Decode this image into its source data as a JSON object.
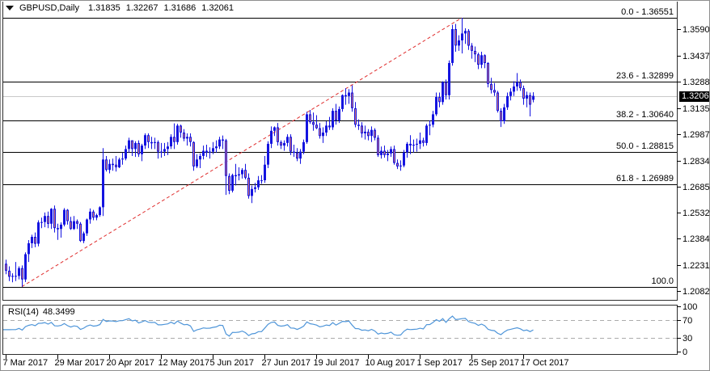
{
  "title": {
    "symbol": "GBPUSD,Daily",
    "open": "1.31835",
    "high": "1.32267",
    "low": "1.31686",
    "close": "1.32061"
  },
  "colors": {
    "bull": "#1414e0",
    "bear_fill": "#dd7a76",
    "wick": "#1414e0",
    "trendline": "#e02e2e",
    "fib_line": "#000000",
    "current_price_line": "#c9c9c9",
    "rsi_line": "#4e95d9",
    "rsi_dash": "#ababab",
    "frame": "#2e2e2e",
    "price_box_bg": "#000000",
    "price_box_text": "#ffffff"
  },
  "chart_data": {
    "type": "candlestick",
    "symbol": "GBPUSD",
    "timeframe": "Daily",
    "ylim": [
      1.2032,
      1.3753
    ],
    "grid": false,
    "current_price": 1.32061,
    "price_box": "1.32061",
    "price_ticks": [
      "1.35900",
      "1.34370",
      "1.32885",
      "1.31355",
      "1.29870",
      "1.28340",
      "1.26855",
      "1.25325",
      "1.23840",
      "1.22310",
      "1.20825"
    ],
    "x_labels": [
      {
        "text": "7 Mar 2017",
        "bar": 0
      },
      {
        "text": "29 Mar 2017",
        "bar": 16
      },
      {
        "text": "20 Apr 2017",
        "bar": 32
      },
      {
        "text": "12 May 2017",
        "bar": 48
      },
      {
        "text": "5 Jun 2017",
        "bar": 64
      },
      {
        "text": "27 Jun 2017",
        "bar": 80
      },
      {
        "text": "19 Jul 2017",
        "bar": 96
      },
      {
        "text": "10 Aug 2017",
        "bar": 112
      },
      {
        "text": "1 Sep 2017",
        "bar": 128
      },
      {
        "text": "25 Sep 2017",
        "bar": 144
      },
      {
        "text": "17 Oct 2017",
        "bar": 160
      }
    ],
    "fibonacci_levels": [
      {
        "label": "0.0 - 1.36551",
        "price": 1.36551
      },
      {
        "label": "23.6 - 1.32899",
        "price": 1.32899
      },
      {
        "label": "38.2 - 1.30640",
        "price": 1.3064
      },
      {
        "label": "50.0 - 1.28815",
        "price": 1.28815
      },
      {
        "label": "61.8 - 1.26989",
        "price": 1.26989
      },
      {
        "label": "100.0",
        "price": 1.21076
      }
    ],
    "trendline": {
      "from_bar": 5,
      "from_price": 1.2108,
      "to_bar": 141,
      "to_price": 1.36551,
      "style": "dashed"
    },
    "rsi": {
      "label": "RSI(14)",
      "value": "48.3499",
      "period": 14,
      "scale_ticks": [
        100,
        70,
        30,
        0
      ],
      "overbought": 70,
      "oversold": 30
    },
    "candles": [
      [
        1.224,
        1.2263,
        1.218,
        1.22
      ],
      [
        1.22,
        1.2225,
        1.214,
        1.2165
      ],
      [
        1.2165,
        1.2185,
        1.2133,
        1.217
      ],
      [
        1.217,
        1.225,
        1.214,
        1.217
      ],
      [
        1.217,
        1.2225,
        1.215,
        1.2215
      ],
      [
        1.2215,
        1.223,
        1.2108,
        1.215
      ],
      [
        1.215,
        1.2305,
        1.2135,
        1.2295
      ],
      [
        1.2295,
        1.2376,
        1.225,
        1.2358
      ],
      [
        1.2358,
        1.2407,
        1.233,
        1.2395
      ],
      [
        1.2395,
        1.242,
        1.2335,
        1.2355
      ],
      [
        1.2355,
        1.249,
        1.234,
        1.2478
      ],
      [
        1.2478,
        1.2505,
        1.2445,
        1.248
      ],
      [
        1.248,
        1.2535,
        1.245,
        1.2515
      ],
      [
        1.2515,
        1.254,
        1.2445,
        1.247
      ],
      [
        1.247,
        1.256,
        1.244,
        1.2556
      ],
      [
        1.2556,
        1.2575,
        1.242,
        1.2445
      ],
      [
        1.2445,
        1.247,
        1.2377,
        1.244
      ],
      [
        1.244,
        1.2478,
        1.239,
        1.2465
      ],
      [
        1.2465,
        1.256,
        1.2455,
        1.255
      ],
      [
        1.255,
        1.2555,
        1.2465,
        1.2485
      ],
      [
        1.2485,
        1.251,
        1.2435,
        1.244
      ],
      [
        1.244,
        1.2515,
        1.2435,
        1.2485
      ],
      [
        1.2485,
        1.2495,
        1.244,
        1.247
      ],
      [
        1.247,
        1.248,
        1.2365,
        1.2371
      ],
      [
        1.2371,
        1.2425,
        1.2358,
        1.2415
      ],
      [
        1.2415,
        1.25,
        1.24,
        1.2495
      ],
      [
        1.2495,
        1.2558,
        1.247,
        1.254
      ],
      [
        1.254,
        1.255,
        1.249,
        1.2505
      ],
      [
        1.2505,
        1.2528,
        1.249,
        1.252
      ],
      [
        1.252,
        1.257,
        1.251,
        1.2565
      ],
      [
        1.2565,
        1.2905,
        1.2515,
        1.284
      ],
      [
        1.284,
        1.286,
        1.277,
        1.278
      ],
      [
        1.278,
        1.284,
        1.276,
        1.2815
      ],
      [
        1.2815,
        1.2845,
        1.2775,
        1.281
      ],
      [
        1.281,
        1.286,
        1.277,
        1.2795
      ],
      [
        1.2795,
        1.285,
        1.279,
        1.284
      ],
      [
        1.284,
        1.288,
        1.281,
        1.2845
      ],
      [
        1.2845,
        1.292,
        1.2835,
        1.29
      ],
      [
        1.29,
        1.2965,
        1.288,
        1.295
      ],
      [
        1.295,
        1.295,
        1.286,
        1.29
      ],
      [
        1.29,
        1.2945,
        1.2855,
        1.2935
      ],
      [
        1.2935,
        1.295,
        1.2855,
        1.287
      ],
      [
        1.287,
        1.293,
        1.283,
        1.292
      ],
      [
        1.292,
        1.299,
        1.29,
        1.298
      ],
      [
        1.298,
        1.299,
        1.2905,
        1.294
      ],
      [
        1.294,
        1.297,
        1.29,
        1.2935
      ],
      [
        1.2935,
        1.2965,
        1.29,
        1.294
      ],
      [
        1.294,
        1.295,
        1.2845,
        1.2885
      ],
      [
        1.2885,
        1.2935,
        1.285,
        1.2885
      ],
      [
        1.2885,
        1.2935,
        1.286,
        1.29
      ],
      [
        1.29,
        1.294,
        1.2865,
        1.2915
      ],
      [
        1.2915,
        1.2985,
        1.29,
        1.297
      ],
      [
        1.297,
        1.3048,
        1.29,
        1.294
      ],
      [
        1.294,
        1.3045,
        1.2925,
        1.3035
      ],
      [
        1.3035,
        1.304,
        1.2965,
        1.2995
      ],
      [
        1.2995,
        1.3015,
        1.2945,
        1.296
      ],
      [
        1.296,
        1.299,
        1.292,
        1.297
      ],
      [
        1.297,
        1.299,
        1.2915,
        1.294
      ],
      [
        1.294,
        1.2945,
        1.2775,
        1.28
      ],
      [
        1.28,
        1.287,
        1.279,
        1.284
      ],
      [
        1.284,
        1.2875,
        1.279,
        1.286
      ],
      [
        1.286,
        1.292,
        1.284,
        1.289
      ],
      [
        1.289,
        1.2925,
        1.2855,
        1.288
      ],
      [
        1.288,
        1.291,
        1.2845,
        1.2885
      ],
      [
        1.2885,
        1.294,
        1.287,
        1.2905
      ],
      [
        1.2905,
        1.295,
        1.288,
        1.2915
      ],
      [
        1.2915,
        1.297,
        1.29,
        1.2955
      ],
      [
        1.2955,
        1.2978,
        1.29,
        1.295
      ],
      [
        1.295,
        1.2958,
        1.2636,
        1.2745
      ],
      [
        1.2745,
        1.276,
        1.264,
        1.266
      ],
      [
        1.266,
        1.2758,
        1.265,
        1.275
      ],
      [
        1.275,
        1.2815,
        1.269,
        1.2748
      ],
      [
        1.2748,
        1.2795,
        1.272,
        1.2755
      ],
      [
        1.2755,
        1.279,
        1.273,
        1.278
      ],
      [
        1.278,
        1.2815,
        1.2725,
        1.2735
      ],
      [
        1.2735,
        1.276,
        1.2615,
        1.263
      ],
      [
        1.263,
        1.269,
        1.2589,
        1.267
      ],
      [
        1.267,
        1.2705,
        1.265,
        1.268
      ],
      [
        1.268,
        1.2745,
        1.2665,
        1.272
      ],
      [
        1.272,
        1.275,
        1.27,
        1.272
      ],
      [
        1.272,
        1.286,
        1.2705,
        1.281
      ],
      [
        1.281,
        1.2945,
        1.279,
        1.293
      ],
      [
        1.293,
        1.303,
        1.2905,
        1.3005
      ],
      [
        1.3005,
        1.303,
        1.2975,
        1.3025
      ],
      [
        1.3025,
        1.305,
        1.292,
        1.294
      ],
      [
        1.294,
        1.295,
        1.29,
        1.292
      ],
      [
        1.292,
        1.295,
        1.289,
        1.2935
      ],
      [
        1.2935,
        1.2985,
        1.2915,
        1.297
      ],
      [
        1.297,
        1.2985,
        1.2865,
        1.2885
      ],
      [
        1.2885,
        1.2925,
        1.2855,
        1.288
      ],
      [
        1.288,
        1.2905,
        1.283,
        1.2845
      ],
      [
        1.2845,
        1.29,
        1.2815,
        1.2885
      ],
      [
        1.2885,
        1.2955,
        1.287,
        1.294
      ],
      [
        1.294,
        1.3115,
        1.293,
        1.31
      ],
      [
        1.31,
        1.3125,
        1.3045,
        1.3055
      ],
      [
        1.3055,
        1.311,
        1.3005,
        1.304
      ],
      [
        1.304,
        1.3095,
        1.3015,
        1.302
      ],
      [
        1.302,
        1.305,
        1.296,
        1.2975
      ],
      [
        1.2975,
        1.3025,
        1.2935,
        1.2995
      ],
      [
        1.2995,
        1.306,
        1.2975,
        1.3035
      ],
      [
        1.3035,
        1.3085,
        1.301,
        1.3025
      ],
      [
        1.3025,
        1.3135,
        1.301,
        1.312
      ],
      [
        1.312,
        1.316,
        1.304,
        1.3065
      ],
      [
        1.3065,
        1.3145,
        1.305,
        1.313
      ],
      [
        1.313,
        1.3215,
        1.3115,
        1.321
      ],
      [
        1.321,
        1.325,
        1.3155,
        1.3205
      ],
      [
        1.3205,
        1.3245,
        1.316,
        1.3225
      ],
      [
        1.3225,
        1.3267,
        1.3115,
        1.3135
      ],
      [
        1.3135,
        1.317,
        1.3025,
        1.304
      ],
      [
        1.304,
        1.307,
        1.301,
        1.3035
      ],
      [
        1.3035,
        1.3055,
        1.2965,
        1.299
      ],
      [
        1.299,
        1.3035,
        1.2955,
        1.3
      ],
      [
        1.3,
        1.3015,
        1.295,
        1.2975
      ],
      [
        1.2975,
        1.303,
        1.294,
        1.301
      ],
      [
        1.301,
        1.302,
        1.295,
        1.2965
      ],
      [
        1.2965,
        1.298,
        1.2855,
        1.2865
      ],
      [
        1.2865,
        1.2915,
        1.2845,
        1.289
      ],
      [
        1.289,
        1.292,
        1.285,
        1.2865
      ],
      [
        1.2865,
        1.2895,
        1.283,
        1.2875
      ],
      [
        1.2875,
        1.2915,
        1.2855,
        1.29
      ],
      [
        1.29,
        1.292,
        1.281,
        1.282
      ],
      [
        1.282,
        1.284,
        1.2785,
        1.28
      ],
      [
        1.28,
        1.2835,
        1.2775,
        1.2805
      ],
      [
        1.2805,
        1.2895,
        1.2795,
        1.288
      ],
      [
        1.288,
        1.294,
        1.285,
        1.293
      ],
      [
        1.293,
        1.298,
        1.287,
        1.292
      ],
      [
        1.292,
        1.2955,
        1.288,
        1.2925
      ],
      [
        1.2925,
        1.296,
        1.2885,
        1.293
      ],
      [
        1.293,
        1.2995,
        1.29,
        1.295
      ],
      [
        1.295,
        1.2965,
        1.2915,
        1.2935
      ],
      [
        1.2935,
        1.3045,
        1.292,
        1.3035
      ],
      [
        1.3035,
        1.3065,
        1.298,
        1.304
      ],
      [
        1.304,
        1.312,
        1.3025,
        1.31
      ],
      [
        1.31,
        1.3225,
        1.309,
        1.32
      ],
      [
        1.32,
        1.3225,
        1.314,
        1.317
      ],
      [
        1.317,
        1.329,
        1.3155,
        1.3285
      ],
      [
        1.3285,
        1.33,
        1.3185,
        1.321
      ],
      [
        1.321,
        1.341,
        1.3185,
        1.3395
      ],
      [
        1.3395,
        1.3615,
        1.338,
        1.359
      ],
      [
        1.359,
        1.362,
        1.346,
        1.3495
      ],
      [
        1.3495,
        1.3555,
        1.3465,
        1.3525
      ],
      [
        1.3525,
        1.36551,
        1.345,
        1.3565
      ],
      [
        1.3565,
        1.3595,
        1.3505,
        1.358
      ],
      [
        1.358,
        1.359,
        1.347,
        1.3495
      ],
      [
        1.3495,
        1.351,
        1.342,
        1.3465
      ],
      [
        1.3465,
        1.349,
        1.34,
        1.3445
      ],
      [
        1.3445,
        1.3455,
        1.336,
        1.3385
      ],
      [
        1.3385,
        1.346,
        1.3365,
        1.344
      ],
      [
        1.344,
        1.3445,
        1.3365,
        1.3395
      ],
      [
        1.3395,
        1.34,
        1.3255,
        1.3275
      ],
      [
        1.3275,
        1.331,
        1.322,
        1.324
      ],
      [
        1.324,
        1.328,
        1.3205,
        1.3225
      ],
      [
        1.3225,
        1.3235,
        1.311,
        1.312
      ],
      [
        1.312,
        1.3135,
        1.3027,
        1.306
      ],
      [
        1.306,
        1.316,
        1.3045,
        1.314
      ],
      [
        1.314,
        1.3225,
        1.3125,
        1.3205
      ],
      [
        1.3205,
        1.325,
        1.318,
        1.323
      ],
      [
        1.323,
        1.329,
        1.3205,
        1.326
      ],
      [
        1.326,
        1.3337,
        1.3235,
        1.3285
      ],
      [
        1.3285,
        1.33,
        1.3235,
        1.325
      ],
      [
        1.325,
        1.3265,
        1.3155,
        1.319
      ],
      [
        1.319,
        1.323,
        1.314,
        1.321
      ],
      [
        1.321,
        1.3225,
        1.3088,
        1.3155
      ],
      [
        1.31835,
        1.32267,
        1.31686,
        1.32061
      ]
    ]
  }
}
